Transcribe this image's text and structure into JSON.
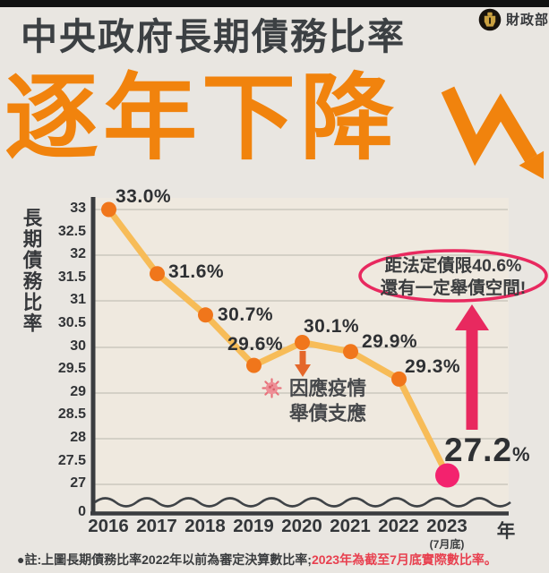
{
  "header": {
    "ministry": "財政部",
    "title_line1": "中央政府長期債務比率",
    "title_line2": "逐年下降"
  },
  "chart_data": {
    "type": "line",
    "title": "中央政府長期債務比率逐年下降",
    "ylabel": "長期債務比率",
    "xlabel": "年",
    "categories": [
      "2016",
      "2017",
      "2018",
      "2019",
      "2020",
      "2021",
      "2022",
      "2023"
    ],
    "values": [
      33.0,
      31.6,
      30.7,
      29.6,
      30.1,
      29.9,
      29.3,
      27.2
    ],
    "point_labels": [
      "33.0%",
      "31.6%",
      "30.7%",
      "29.6%",
      "30.1%",
      "29.9%",
      "29.3%"
    ],
    "final_label": {
      "value": "27.2",
      "unit": "%"
    },
    "y_ticks": [
      "33",
      "32.5",
      "32",
      "31.5",
      "31",
      "30.5",
      "30",
      "29.5",
      "29",
      "28.5",
      "28",
      "27.5",
      "27",
      "0"
    ],
    "ylim_display": [
      27,
      33
    ],
    "axis_break": true,
    "x_sub_label": "(7月底)",
    "grid": "horizontal-at-integers",
    "legend": null
  },
  "annotations": {
    "covid": {
      "line1": "因應疫情",
      "line2": "舉債支應"
    },
    "headroom": {
      "line1": "距法定債限40.6%",
      "line2": "還有一定舉債空間!"
    }
  },
  "footnote": {
    "normal": "●註:上圖長期債務比率2022年以前為審定決算數比率;",
    "highlight": "2023年為截至7月底實際數比率。"
  },
  "colors": {
    "accent_orange": "#F1830D",
    "line_orange": "#F7BC58",
    "point_orange": "#F0761B",
    "final_point_pink": "#F3226E",
    "annotation_pink": "#E8295F",
    "note_red": "#E8404F",
    "dark_text": "#2F3134",
    "paper_bg": "#E9E6E1"
  }
}
